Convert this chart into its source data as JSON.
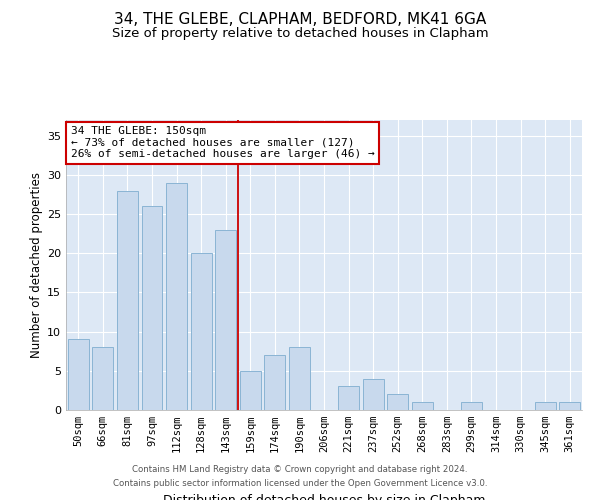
{
  "title": "34, THE GLEBE, CLAPHAM, BEDFORD, MK41 6GA",
  "subtitle": "Size of property relative to detached houses in Clapham",
  "xlabel": "Distribution of detached houses by size in Clapham",
  "ylabel": "Number of detached properties",
  "categories": [
    "50sqm",
    "66sqm",
    "81sqm",
    "97sqm",
    "112sqm",
    "128sqm",
    "143sqm",
    "159sqm",
    "174sqm",
    "190sqm",
    "206sqm",
    "221sqm",
    "237sqm",
    "252sqm",
    "268sqm",
    "283sqm",
    "299sqm",
    "314sqm",
    "330sqm",
    "345sqm",
    "361sqm"
  ],
  "values": [
    9,
    8,
    28,
    26,
    29,
    20,
    23,
    5,
    7,
    8,
    0,
    3,
    4,
    2,
    1,
    0,
    1,
    0,
    0,
    1,
    1
  ],
  "bar_color": "#c8d9ed",
  "bar_edge_color": "#8ab4d4",
  "annotation_title": "34 THE GLEBE: 150sqm",
  "annotation_line1": "← 73% of detached houses are smaller (127)",
  "annotation_line2": "26% of semi-detached houses are larger (46) →",
  "annotation_box_facecolor": "#ffffff",
  "annotation_box_edgecolor": "#cc0000",
  "ref_line_color": "#cc0000",
  "ylim": [
    0,
    37
  ],
  "yticks": [
    0,
    5,
    10,
    15,
    20,
    25,
    30,
    35
  ],
  "grid_color": "#ffffff",
  "background_color": "#dde8f5",
  "plot_bg_color": "#dde8f5",
  "title_fontsize": 11,
  "subtitle_fontsize": 9.5,
  "tick_fontsize": 7.5,
  "ylabel_fontsize": 8.5,
  "xlabel_fontsize": 9,
  "annotation_fontsize": 8,
  "footer_line1": "Contains HM Land Registry data © Crown copyright and database right 2024.",
  "footer_line2": "Contains public sector information licensed under the Open Government Licence v3.0.",
  "footer_fontsize": 6.2
}
